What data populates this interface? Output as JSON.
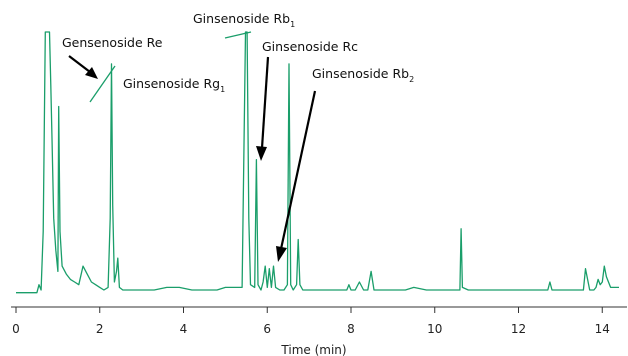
{
  "chart_data": {
    "type": "line",
    "title": "",
    "xlabel": "Time (min)",
    "ylabel": "",
    "xlim": [
      0,
      14.4
    ],
    "ylim": [
      0,
      100
    ],
    "xticks": [
      0,
      2,
      4,
      6,
      8,
      10,
      12,
      14
    ],
    "grid": false,
    "colors": {
      "trace": "#1a9e6a",
      "axis": "#333333",
      "arrow": "#000000"
    },
    "series": [
      {
        "values_note": "",
        "x": [
          0,
          0.5,
          0.55,
          0.6,
          0.65,
          0.7,
          0.75,
          0.8,
          0.83,
          0.86,
          0.9,
          0.95,
          1.0,
          1.02,
          1.05,
          1.1,
          1.2,
          1.3,
          1.4,
          1.5,
          1.6,
          1.7,
          1.8,
          1.9,
          2.0,
          2.1,
          2.2,
          2.25,
          2.28,
          2.31,
          2.35,
          2.4,
          2.43,
          2.47,
          2.55,
          2.7,
          3.0,
          3.3,
          3.6,
          3.9,
          4.2,
          4.4,
          4.6,
          4.8,
          5.0,
          5.2,
          5.4,
          5.48,
          5.52,
          5.56,
          5.6,
          5.7,
          5.74,
          5.78,
          5.85,
          5.9,
          5.95,
          6.0,
          6.05,
          6.1,
          6.15,
          6.2,
          6.3,
          6.4,
          6.48,
          6.52,
          6.56,
          6.62,
          6.7,
          6.74,
          6.78,
          6.85,
          6.95,
          7.1,
          7.3,
          7.5,
          7.7,
          7.9,
          7.95,
          8.0,
          8.1,
          8.2,
          8.3,
          8.4,
          8.48,
          8.55,
          8.7,
          9.0,
          9.3,
          9.5,
          9.8,
          10.1,
          10.4,
          10.6,
          10.63,
          10.66,
          10.8,
          11.0,
          11.3,
          11.6,
          11.9,
          12.2,
          12.5,
          12.7,
          12.75,
          12.8,
          13.0,
          13.3,
          13.5,
          13.55,
          13.6,
          13.7,
          13.8,
          13.85,
          13.9,
          13.95,
          14.0,
          14.05,
          14.1,
          14.2,
          14.4
        ],
        "y": [
          2,
          2,
          5,
          3,
          25,
          100,
          100,
          100,
          80,
          60,
          30,
          18,
          10,
          72,
          25,
          12,
          9,
          7,
          6,
          5,
          12,
          9,
          6,
          5,
          4,
          3,
          4,
          30,
          88,
          35,
          6,
          10,
          15,
          4,
          3,
          3,
          3,
          3,
          4,
          4,
          3,
          3,
          3,
          3,
          4,
          4,
          4,
          100,
          100,
          30,
          5,
          4,
          52,
          5,
          3,
          6,
          12,
          4,
          11,
          4,
          12,
          4,
          3,
          3,
          5,
          88,
          5,
          3,
          5,
          22,
          5,
          3,
          3,
          3,
          3,
          3,
          3,
          3,
          5,
          3,
          3,
          6,
          3,
          3,
          10,
          3,
          3,
          3,
          3,
          4,
          3,
          3,
          3,
          3,
          26,
          4,
          3,
          3,
          3,
          3,
          3,
          3,
          3,
          3,
          6,
          3,
          3,
          3,
          3,
          3,
          11,
          3,
          3,
          4,
          7,
          5,
          6,
          12,
          8,
          4,
          4
        ]
      }
    ],
    "annotations": [
      {
        "label": "Gensenoside Re",
        "sub": ""
      },
      {
        "label": "Ginsenoside Rg",
        "sub": "1"
      },
      {
        "label": "Ginsenoside Rb",
        "sub": "1"
      },
      {
        "label": "Ginsenoside Rc",
        "sub": ""
      },
      {
        "label": "Ginsenoside Rb",
        "sub": "2"
      }
    ]
  }
}
